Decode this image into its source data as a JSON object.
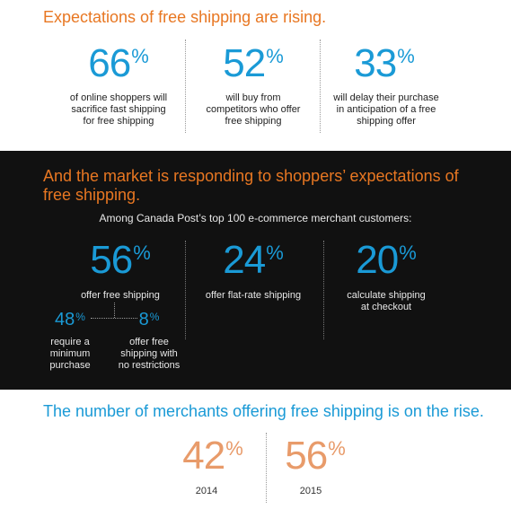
{
  "section1": {
    "heading": "Expectations of free shipping are rising.",
    "stats": [
      {
        "value": "66",
        "percent": "%",
        "desc": [
          "of online shoppers will",
          "sacrifice fast shipping",
          "for free shipping"
        ]
      },
      {
        "value": "52",
        "percent": "%",
        "desc": [
          "will buy from",
          "competitors who offer",
          "free shipping"
        ]
      },
      {
        "value": "33",
        "percent": "%",
        "desc": [
          "will delay their purchase",
          "in anticipation of a free",
          "shipping offer"
        ]
      }
    ]
  },
  "section2": {
    "heading_line1": "And the market is responding to shoppers’ expectations of",
    "heading_line2": "free shipping.",
    "subheading": "Among Canada Post’s top 100 e-commerce merchant customers:",
    "stats": [
      {
        "value": "56",
        "percent": "%",
        "desc": [
          "offer free shipping"
        ]
      },
      {
        "value": "24",
        "percent": "%",
        "desc": [
          "offer flat-rate shipping"
        ]
      },
      {
        "value": "20",
        "percent": "%",
        "desc": [
          "calculate shipping",
          "at checkout"
        ]
      }
    ],
    "breakdown": [
      {
        "value": "48",
        "percent": "%",
        "desc": [
          "require a",
          "minimum",
          "purchase"
        ]
      },
      {
        "value": "8",
        "percent": "%",
        "desc": [
          "offer free",
          "shipping with",
          "no restrictions"
        ]
      }
    ]
  },
  "section3": {
    "heading": "The number of merchants offering free shipping is on the rise.",
    "stats": [
      {
        "value": "42",
        "percent": "%",
        "year": "2014"
      },
      {
        "value": "56",
        "percent": "%",
        "year": "2015"
      }
    ]
  },
  "colors": {
    "orange": "#e87722",
    "blue": "#1a9ad6",
    "dark_bg": "#111111",
    "light_orange": "#e89b6a"
  }
}
